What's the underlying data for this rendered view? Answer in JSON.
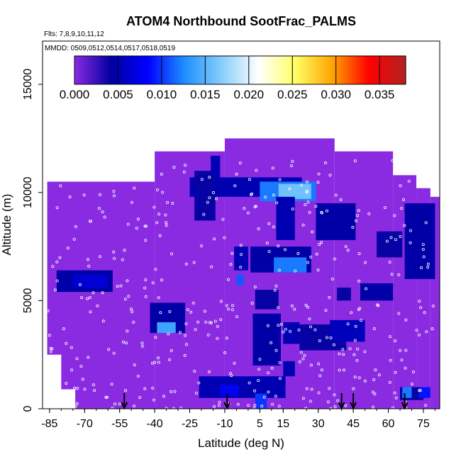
{
  "chart_data": {
    "type": "heatmap",
    "title": "ATOM4 Northbound SootFrac_PALMS",
    "flights_label": "Flts: 7,8,9,10,11,12",
    "dates_label": "MMDD: 0509,0512,0514,0517,0518,0519",
    "xlabel": "Latitude (deg N)",
    "ylabel": "Altitude (m)",
    "xlim": [
      -88,
      82
    ],
    "ylim": [
      0,
      17000
    ],
    "x_ticks": [
      -85,
      -70,
      -55,
      -40,
      -25,
      -10,
      5,
      15,
      30,
      45,
      60,
      75
    ],
    "x_tick_labels": [
      "-85",
      "-70",
      "-55",
      "-40",
      "-25",
      "-10",
      "5",
      "15",
      "30",
      "45",
      "60",
      "75"
    ],
    "y_ticks": [
      0,
      5000,
      10000,
      15000
    ],
    "y_tick_labels": [
      "0",
      "5000",
      "10000",
      "15000"
    ],
    "colorbar": {
      "range": [
        0,
        0.038
      ],
      "ticks": [
        0,
        0.005,
        0.01,
        0.015,
        0.02,
        0.025,
        0.03,
        0.035
      ],
      "tick_labels": [
        "0.000",
        "0.005",
        "0.010",
        "0.015",
        "0.020",
        "0.025",
        "0.030",
        "0.035"
      ],
      "stops": [
        "#8A2BE2",
        "#0000A0",
        "#0000FF",
        "#1E90FF",
        "#87CEFA",
        "#FFFFFF",
        "#FFFF66",
        "#FFA500",
        "#FF0000",
        "#B22222"
      ]
    },
    "background_value": 0.0,
    "background_color": "#8A2BE2",
    "coverage": [
      {
        "lat": [
          -86,
          -40
        ],
        "alt": [
          0,
          10500
        ]
      },
      {
        "lat": [
          -40,
          -10
        ],
        "alt": [
          0,
          11900
        ]
      },
      {
        "lat": [
          -10,
          37
        ],
        "alt": [
          0,
          12500
        ]
      },
      {
        "lat": [
          37,
          62
        ],
        "alt": [
          0,
          11900
        ]
      },
      {
        "lat": [
          62,
          72
        ],
        "alt": [
          0,
          10800
        ]
      },
      {
        "lat": [
          72,
          78
        ],
        "alt": [
          0,
          10200
        ]
      },
      {
        "lat": [
          78,
          82
        ],
        "alt": [
          0,
          9800
        ]
      }
    ],
    "blanks": [
      {
        "lat": [
          -88,
          -80
        ],
        "alt": [
          0,
          2500
        ]
      },
      {
        "lat": [
          -88,
          -74
        ],
        "alt": [
          0,
          900
        ]
      }
    ],
    "patches": [
      {
        "lat": [
          -82,
          -58
        ],
        "alt": [
          5400,
          6400
        ],
        "value": 0.0045
      },
      {
        "lat": [
          -75,
          -60
        ],
        "alt": [
          5600,
          6200
        ],
        "value": 0.0065
      },
      {
        "lat": [
          -42,
          -27
        ],
        "alt": [
          3500,
          4900
        ],
        "value": 0.0045
      },
      {
        "lat": [
          -39,
          -31
        ],
        "alt": [
          3500,
          4000
        ],
        "value": 0.014
      },
      {
        "lat": [
          -25,
          23
        ],
        "alt": [
          9800,
          10700
        ],
        "value": 0.005
      },
      {
        "lat": [
          5,
          29
        ],
        "alt": [
          9600,
          10500
        ],
        "value": 0.012
      },
      {
        "lat": [
          13,
          27
        ],
        "alt": [
          9700,
          10400
        ],
        "value": 0.016
      },
      {
        "lat": [
          -23,
          -14
        ],
        "alt": [
          8700,
          11000
        ],
        "value": 0.004
      },
      {
        "lat": [
          -16,
          -12
        ],
        "alt": [
          10700,
          11700
        ],
        "value": 0.005
      },
      {
        "lat": [
          12,
          20
        ],
        "alt": [
          7800,
          9800
        ],
        "value": 0.005
      },
      {
        "lat": [
          1,
          27
        ],
        "alt": [
          6300,
          7500
        ],
        "value": 0.0045
      },
      {
        "lat": [
          11,
          25
        ],
        "alt": [
          6300,
          7000
        ],
        "value": 0.012
      },
      {
        "lat": [
          -6,
          0
        ],
        "alt": [
          6400,
          7500
        ],
        "value": 0.005
      },
      {
        "lat": [
          -5,
          -2
        ],
        "alt": [
          5700,
          6200
        ],
        "value": 0.011
      },
      {
        "lat": [
          3,
          13
        ],
        "alt": [
          4600,
          5500
        ],
        "value": 0.004
      },
      {
        "lat": [
          2,
          14
        ],
        "alt": [
          2000,
          4400
        ],
        "value": 0.0045
      },
      {
        "lat": [
          15,
          22
        ],
        "alt": [
          3000,
          4000
        ],
        "value": 0.005
      },
      {
        "lat": [
          22,
          42
        ],
        "alt": [
          2700,
          3900
        ],
        "value": 0.004
      },
      {
        "lat": [
          35,
          50
        ],
        "alt": [
          3100,
          4100
        ],
        "value": 0.0055
      },
      {
        "lat": [
          38,
          44
        ],
        "alt": [
          5000,
          5600
        ],
        "value": 0.004
      },
      {
        "lat": [
          48,
          62
        ],
        "alt": [
          5000,
          5800
        ],
        "value": 0.0045
      },
      {
        "lat": [
          -21,
          16
        ],
        "alt": [
          500,
          1500
        ],
        "value": 0.005
      },
      {
        "lat": [
          -12,
          -4
        ],
        "alt": [
          600,
          1100
        ],
        "value": 0.008
      },
      {
        "lat": [
          3,
          8
        ],
        "alt": [
          0,
          700
        ],
        "value": 0.01
      },
      {
        "lat": [
          15,
          20
        ],
        "alt": [
          1500,
          2200
        ],
        "value": 0.005
      },
      {
        "lat": [
          29,
          46
        ],
        "alt": [
          7800,
          9500
        ],
        "value": 0.0045
      },
      {
        "lat": [
          65,
          75
        ],
        "alt": [
          400,
          1000
        ],
        "value": 0.004
      },
      {
        "lat": [
          66,
          70
        ],
        "alt": [
          500,
          1000
        ],
        "value": 0.012
      },
      {
        "lat": [
          73,
          78
        ],
        "alt": [
          500,
          1000
        ],
        "value": 0.009
      },
      {
        "lat": [
          67,
          80
        ],
        "alt": [
          6000,
          9500
        ],
        "value": 0.0045
      },
      {
        "lat": [
          55,
          66
        ],
        "alt": [
          7000,
          8200
        ],
        "value": 0.004
      }
    ],
    "profile_arrows_lat": [
      -53,
      -9,
      40,
      45,
      67
    ],
    "grid": false,
    "legend": "colorbar top"
  }
}
